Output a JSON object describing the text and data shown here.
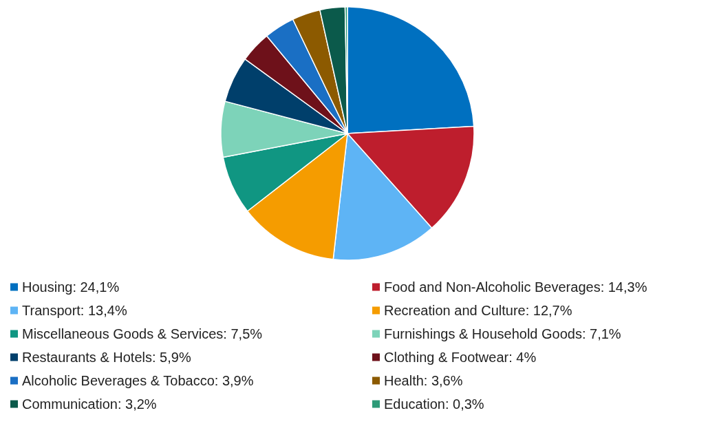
{
  "chart_data": {
    "type": "pie",
    "categories": [
      "Housing",
      "Food and Non-Alcoholic Beverages",
      "Transport",
      "Recreation and Culture",
      "Miscellaneous Goods & Services",
      "Furnishings & Household Goods",
      "Restaurants & Hotels",
      "Clothing & Footwear",
      "Alcoholic Beverages & Tobacco",
      "Health",
      "Communication",
      "Education"
    ],
    "values": [
      24.1,
      14.3,
      13.4,
      12.7,
      7.5,
      7.1,
      5.9,
      4,
      3.9,
      3.6,
      3.2,
      0.3
    ],
    "value_labels": [
      "24,1%",
      "14,3%",
      "13,4%",
      "12,7%",
      "7,5%",
      "7,1%",
      "5,9%",
      "4%",
      "3,9%",
      "3,6%",
      "3,2%",
      "0,3%"
    ],
    "colors": [
      "#0070c0",
      "#be1e2d",
      "#5eb4f5",
      "#f59c00",
      "#109682",
      "#7dd3b9",
      "#003f6b",
      "#6e111a",
      "#1a6fc4",
      "#8c5a00",
      "#0b5a4b",
      "#2e9b78"
    ],
    "legend": "bottom"
  }
}
